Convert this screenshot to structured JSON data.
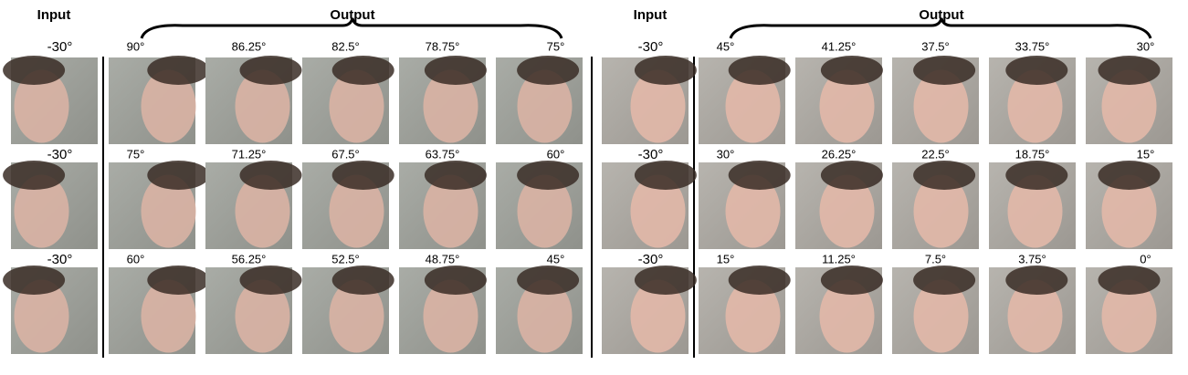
{
  "panels": [
    {
      "input_header": "Input",
      "output_header": "Output",
      "rows": [
        {
          "input_angle": "-30°",
          "output_angles": [
            "90°",
            "86.25°",
            "82.5°",
            "78.75°",
            "75°"
          ]
        },
        {
          "input_angle": "-30°",
          "output_angles": [
            "75°",
            "71.25°",
            "67.5°",
            "63.75°",
            "60°"
          ]
        },
        {
          "input_angle": "-30°",
          "output_angles": [
            "60°",
            "56.25°",
            "52.5°",
            "48.75°",
            "45°"
          ]
        }
      ]
    },
    {
      "input_header": "Input",
      "output_header": "Output",
      "rows": [
        {
          "input_angle": "-30°",
          "output_angles": [
            "45°",
            "41.25°",
            "37.5°",
            "33.75°",
            "30°"
          ]
        },
        {
          "input_angle": "-30°",
          "output_angles": [
            "30°",
            "26.25°",
            "22.5°",
            "18.75°",
            "15°"
          ]
        },
        {
          "input_angle": "-30°",
          "output_angles": [
            "15°",
            "11.25°",
            "7.5°",
            "3.75°",
            "0°"
          ]
        }
      ]
    }
  ]
}
